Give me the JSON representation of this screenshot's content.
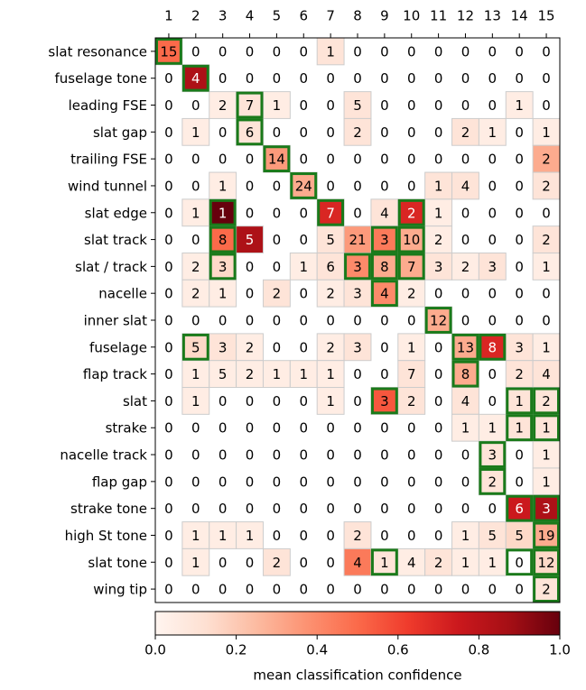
{
  "chart_data": {
    "type": "heatmap",
    "columns": [
      1,
      2,
      3,
      4,
      5,
      6,
      7,
      8,
      9,
      10,
      11,
      12,
      13,
      14,
      15
    ],
    "rows": [
      "slat resonance",
      "fuselage tone",
      "leading FSE",
      "slat gap",
      "trailing FSE",
      "wind tunnel",
      "slat edge",
      "slat track",
      "slat / track",
      "nacelle",
      "inner slat",
      "fuselage",
      "flap track",
      "slat",
      "strake",
      "nacelle track",
      "flap gap",
      "strake tone",
      "high St tone",
      "slat tone",
      "wing tip"
    ],
    "values": [
      [
        15,
        0,
        0,
        0,
        0,
        0,
        1,
        0,
        0,
        0,
        0,
        0,
        0,
        0,
        0
      ],
      [
        0,
        4,
        0,
        0,
        0,
        0,
        0,
        0,
        0,
        0,
        0,
        0,
        0,
        0,
        0
      ],
      [
        0,
        0,
        2,
        7,
        1,
        0,
        0,
        5,
        0,
        0,
        0,
        0,
        0,
        1,
        0
      ],
      [
        0,
        1,
        0,
        6,
        0,
        0,
        0,
        2,
        0,
        0,
        0,
        2,
        1,
        0,
        1
      ],
      [
        0,
        0,
        0,
        0,
        14,
        0,
        0,
        0,
        0,
        0,
        0,
        0,
        0,
        0,
        2
      ],
      [
        0,
        0,
        1,
        0,
        0,
        24,
        0,
        0,
        0,
        0,
        1,
        4,
        0,
        0,
        2
      ],
      [
        0,
        1,
        1,
        0,
        0,
        0,
        7,
        0,
        4,
        2,
        1,
        0,
        0,
        0,
        0
      ],
      [
        0,
        0,
        8,
        5,
        0,
        0,
        5,
        21,
        3,
        10,
        2,
        0,
        0,
        0,
        2
      ],
      [
        0,
        2,
        3,
        0,
        0,
        1,
        6,
        3,
        8,
        7,
        3,
        2,
        3,
        0,
        1
      ],
      [
        0,
        2,
        1,
        0,
        2,
        0,
        2,
        3,
        4,
        2,
        0,
        0,
        0,
        0,
        0
      ],
      [
        0,
        0,
        0,
        0,
        0,
        0,
        0,
        0,
        0,
        0,
        12,
        0,
        0,
        0,
        0
      ],
      [
        0,
        5,
        3,
        2,
        0,
        0,
        2,
        3,
        0,
        1,
        0,
        13,
        8,
        3,
        1
      ],
      [
        0,
        1,
        5,
        2,
        1,
        1,
        1,
        0,
        0,
        7,
        0,
        8,
        0,
        2,
        4
      ],
      [
        0,
        1,
        0,
        0,
        0,
        0,
        1,
        0,
        3,
        2,
        0,
        4,
        0,
        1,
        2
      ],
      [
        0,
        0,
        0,
        0,
        0,
        0,
        0,
        0,
        0,
        0,
        0,
        1,
        1,
        1,
        1
      ],
      [
        0,
        0,
        0,
        0,
        0,
        0,
        0,
        0,
        0,
        0,
        0,
        0,
        3,
        0,
        1
      ],
      [
        0,
        0,
        0,
        0,
        0,
        0,
        0,
        0,
        0,
        0,
        0,
        0,
        2,
        0,
        1
      ],
      [
        0,
        0,
        0,
        0,
        0,
        0,
        0,
        0,
        0,
        0,
        0,
        0,
        0,
        6,
        3
      ],
      [
        0,
        1,
        1,
        1,
        0,
        0,
        0,
        2,
        0,
        0,
        0,
        1,
        5,
        5,
        19
      ],
      [
        0,
        1,
        0,
        0,
        2,
        0,
        0,
        4,
        1,
        4,
        2,
        1,
        1,
        0,
        12
      ],
      [
        0,
        0,
        0,
        0,
        0,
        0,
        0,
        0,
        0,
        0,
        0,
        0,
        0,
        0,
        2
      ]
    ],
    "confidence": [
      [
        0.5,
        null,
        null,
        null,
        null,
        null,
        0.1,
        null,
        null,
        null,
        null,
        null,
        null,
        null,
        null
      ],
      [
        null,
        0.85,
        null,
        null,
        null,
        null,
        null,
        null,
        null,
        null,
        null,
        null,
        null,
        null,
        null
      ],
      [
        null,
        null,
        0.05,
        0.1,
        0.05,
        null,
        null,
        0.1,
        null,
        null,
        null,
        null,
        null,
        0.05,
        null
      ],
      [
        null,
        0.05,
        null,
        0.1,
        null,
        null,
        null,
        0.1,
        null,
        null,
        null,
        0.1,
        0.05,
        null,
        0.05
      ],
      [
        null,
        null,
        null,
        null,
        0.35,
        null,
        null,
        null,
        null,
        null,
        null,
        null,
        null,
        null,
        0.3
      ],
      [
        null,
        null,
        0.05,
        null,
        null,
        0.3,
        null,
        null,
        null,
        null,
        0.1,
        0.1,
        null,
        null,
        0.1
      ],
      [
        null,
        0.05,
        1.0,
        null,
        null,
        null,
        0.7,
        null,
        0.1,
        0.7,
        0.05,
        null,
        null,
        null,
        null
      ],
      [
        null,
        null,
        0.5,
        0.85,
        null,
        null,
        0.1,
        0.35,
        0.45,
        0.3,
        0.05,
        null,
        null,
        null,
        0.1
      ],
      [
        null,
        0.05,
        0.15,
        null,
        null,
        0.05,
        0.1,
        0.4,
        0.3,
        0.3,
        0.1,
        0.05,
        0.1,
        null,
        0.05
      ],
      [
        null,
        0.05,
        0.05,
        null,
        0.1,
        null,
        0.05,
        0.1,
        0.4,
        0.05,
        null,
        null,
        null,
        null,
        null
      ],
      [
        null,
        null,
        null,
        null,
        null,
        null,
        null,
        null,
        null,
        null,
        0.3,
        null,
        null,
        null,
        null
      ],
      [
        null,
        0.15,
        0.1,
        0.05,
        null,
        null,
        0.05,
        0.1,
        null,
        0.05,
        null,
        0.3,
        0.7,
        0.1,
        0.05
      ],
      [
        null,
        0.05,
        0.05,
        0.05,
        0.05,
        0.05,
        0.05,
        null,
        null,
        0.1,
        null,
        0.3,
        null,
        0.1,
        0.1
      ],
      [
        null,
        0.05,
        null,
        null,
        null,
        null,
        0.05,
        null,
        0.55,
        0.1,
        null,
        0.1,
        null,
        0.1,
        0.1
      ],
      [
        null,
        null,
        null,
        null,
        null,
        null,
        null,
        null,
        null,
        null,
        null,
        0.05,
        0.05,
        0.1,
        0.1
      ],
      [
        null,
        null,
        null,
        null,
        null,
        null,
        null,
        null,
        null,
        null,
        null,
        null,
        0.1,
        null,
        0.05
      ],
      [
        null,
        null,
        null,
        null,
        null,
        null,
        null,
        null,
        null,
        null,
        null,
        null,
        0.1,
        null,
        0.05
      ],
      [
        null,
        null,
        null,
        null,
        null,
        null,
        null,
        null,
        null,
        null,
        null,
        null,
        null,
        0.75,
        0.85
      ],
      [
        null,
        0.05,
        0.05,
        0.05,
        null,
        null,
        null,
        0.1,
        null,
        null,
        null,
        0.05,
        0.1,
        0.15,
        0.3
      ],
      [
        null,
        0.05,
        null,
        null,
        0.1,
        null,
        null,
        0.45,
        0.1,
        0.05,
        0.1,
        0.05,
        0.05,
        null,
        0.15
      ],
      [
        null,
        null,
        null,
        null,
        null,
        null,
        null,
        null,
        null,
        null,
        null,
        null,
        null,
        null,
        0.1
      ]
    ],
    "highlight": [
      {
        "row": "slat resonance",
        "column": 1
      },
      {
        "row": "fuselage tone",
        "column": 2
      },
      {
        "row": "leading FSE",
        "column": 4
      },
      {
        "row": "slat gap",
        "column": 4
      },
      {
        "row": "trailing FSE",
        "column": 5
      },
      {
        "row": "wind tunnel",
        "column": 6
      },
      {
        "row": "slat edge",
        "column": 3
      },
      {
        "row": "slat edge",
        "column": 7
      },
      {
        "row": "slat edge",
        "column": 10
      },
      {
        "row": "slat track",
        "column": 3
      },
      {
        "row": "slat track",
        "column": 9
      },
      {
        "row": "slat track",
        "column": 10
      },
      {
        "row": "slat / track",
        "column": 3
      },
      {
        "row": "slat / track",
        "column": 8
      },
      {
        "row": "slat / track",
        "column": 9
      },
      {
        "row": "slat / track",
        "column": 10
      },
      {
        "row": "nacelle",
        "column": 9
      },
      {
        "row": "inner slat",
        "column": 11
      },
      {
        "row": "fuselage",
        "column": 2
      },
      {
        "row": "fuselage",
        "column": 12
      },
      {
        "row": "fuselage",
        "column": 13
      },
      {
        "row": "flap track",
        "column": 12
      },
      {
        "row": "slat",
        "column": 9
      },
      {
        "row": "slat",
        "column": 14
      },
      {
        "row": "slat",
        "column": 15
      },
      {
        "row": "strake",
        "column": 14
      },
      {
        "row": "strake",
        "column": 15
      },
      {
        "row": "nacelle track",
        "column": 13
      },
      {
        "row": "flap gap",
        "column": 13
      },
      {
        "row": "strake tone",
        "column": 14
      },
      {
        "row": "strake tone",
        "column": 15
      },
      {
        "row": "high St tone",
        "column": 15
      },
      {
        "row": "slat tone",
        "column": 9
      },
      {
        "row": "slat tone",
        "column": 14
      },
      {
        "row": "slat tone",
        "column": 15
      },
      {
        "row": "wing tip",
        "column": 15
      }
    ],
    "highlight_color": "#1a7a1a",
    "colormap": "Reds",
    "colorbar": {
      "label": "mean classification confidence",
      "xlim": [
        0,
        1
      ],
      "xticks": [
        {
          "value": 0,
          "label": "0.0"
        },
        {
          "value": 0.2,
          "label": "0.2"
        },
        {
          "value": 0.4,
          "label": "0.4"
        },
        {
          "value": 0.6,
          "label": "0.6"
        },
        {
          "value": 0.8,
          "label": "0.8"
        },
        {
          "value": 1,
          "label": "1.0"
        }
      ]
    }
  }
}
